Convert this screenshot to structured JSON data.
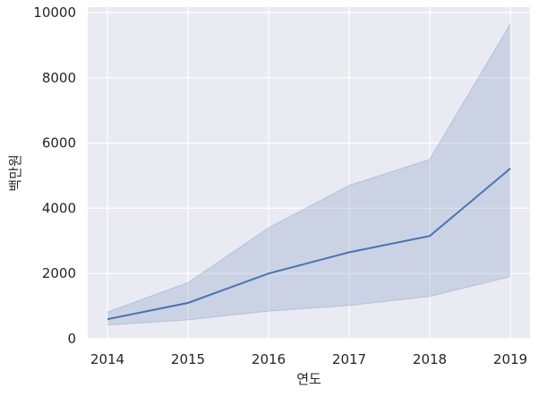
{
  "chart_data": {
    "type": "line",
    "title": "",
    "xlabel": "연도",
    "ylabel": "백만원",
    "x": [
      2014,
      2015,
      2016,
      2017,
      2018,
      2019
    ],
    "xticks": [
      "2014",
      "2015",
      "2016",
      "2017",
      "2018",
      "2019"
    ],
    "yticks": [
      "0",
      "2000",
      "4000",
      "6000",
      "8000",
      "10000"
    ],
    "ylim": [
      0,
      10000
    ],
    "grid": true,
    "series": [
      {
        "values": [
          600,
          1100,
          2000,
          2650,
          3150,
          5220
        ],
        "ci_lower": [
          420,
          580,
          850,
          1020,
          1300,
          1900
        ],
        "ci_upper": [
          820,
          1720,
          3400,
          4700,
          5500,
          9650
        ]
      }
    ],
    "colors": {
      "line": "#4c72b0",
      "band": "#4c72b0",
      "background": "#eaeaf2",
      "grid": "#ffffff"
    }
  }
}
